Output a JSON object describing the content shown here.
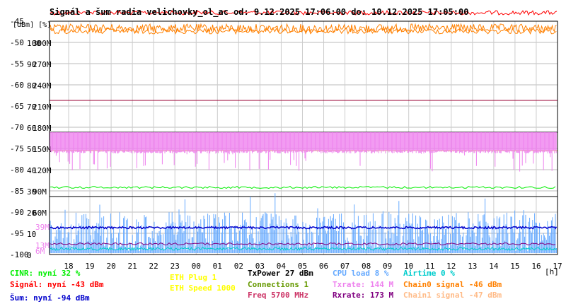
{
  "chart_data": {
    "type": "line",
    "title": "Signál a šum radia velichovky_ol_ac od: 9.12.2025 17:06:00 do: 10.12.2025 17:05:00",
    "units_header": "[dBm] [%]",
    "x_unit": "[h]",
    "x_ticks": [
      "18",
      "19",
      "20",
      "21",
      "22",
      "23",
      "00",
      "01",
      "02",
      "03",
      "04",
      "05",
      "06",
      "07",
      "08",
      "09",
      "10",
      "11",
      "12",
      "13",
      "14",
      "15",
      "16",
      "17"
    ],
    "y_ticks_dbm": [
      "-45",
      "-50",
      "-55",
      "-60",
      "-65",
      "-70",
      "-75",
      "-80",
      "-85",
      "-90",
      "-95",
      "-100"
    ],
    "y_ticks_pct": [
      "100",
      "90",
      "80",
      "70",
      "60",
      "50",
      "40",
      "30",
      "20",
      "10",
      "0"
    ],
    "y_ticks_rate": [
      "300M",
      "270M",
      "240M",
      "210M",
      "180M",
      "150M",
      "120M",
      "90M",
      "60M"
    ],
    "inline_labels": [
      "39M",
      "13M",
      "6M"
    ],
    "ylim_dbm": [
      -100,
      -45
    ],
    "grid": true,
    "series": [
      {
        "name": "Signál",
        "approx_level_dbm": -45,
        "color": "#ff0000"
      },
      {
        "name": "Chain0 signal",
        "approx_level_dbm": -47,
        "color": "#ff8000"
      },
      {
        "name": "Txrate",
        "approx_level_mbps": 144,
        "color": "#ee82ee"
      },
      {
        "name": "Rxrate",
        "approx_level_mbps": 173,
        "color": "#800080"
      },
      {
        "name": "CINR",
        "approx_level_pct": 32,
        "color": "#00ee00"
      },
      {
        "name": "Šum",
        "approx_level_dbm": -94,
        "color": "#0000cc"
      },
      {
        "name": "CPU load",
        "approx_level_pct": 8,
        "color": "#66aaff"
      },
      {
        "name": "Airtime",
        "approx_level_pct": 0,
        "color": "#00cccc"
      }
    ]
  },
  "legend": {
    "cinr": "CINR: nyní 32 %",
    "signal": "Signál: nyní -43 dBm",
    "noise": "Šum: nyní -94 dBm",
    "eth_plug": "ETH Plug 1",
    "eth_speed": "ETH Speed 1000",
    "txpower": "TxPower 27 dBm",
    "connections": "Connections 1",
    "freq": "Freq 5700 MHz",
    "cpu": "CPU load 8 %",
    "txrate": "Txrate: 144 M",
    "rxrate": "Rxrate: 173 M",
    "airtime": "Airtime 0 %",
    "chain0": "Chain0 signal -46 dBm",
    "chain1": "Chain1 signal -47 dBm"
  },
  "colors": {
    "cinr": "#00ee00",
    "signal": "#ff0000",
    "noise": "#0000cc",
    "eth": "#ffff00",
    "txpower": "#000000",
    "connections": "#669900",
    "freq": "#cc3366",
    "cpu": "#66aaff",
    "txrate": "#ee82ee",
    "rxrate": "#800080",
    "airtime": "#00cccc",
    "chain0": "#ff8000",
    "chain1": "#ffbb88"
  }
}
